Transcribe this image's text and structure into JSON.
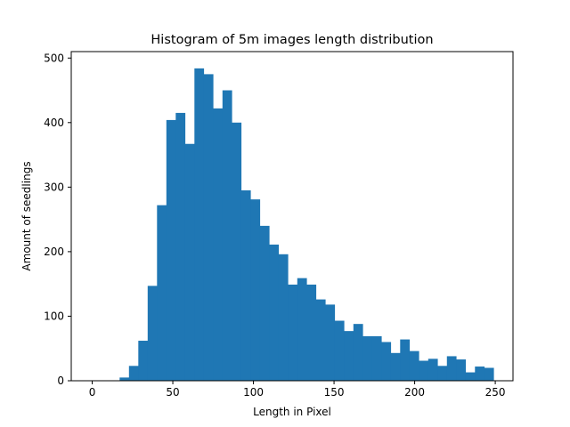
{
  "chart_data": {
    "type": "bar",
    "title": "Histogram of 5m images length distribution",
    "xlabel": "Length in Pixel",
    "ylabel": "Amount of seedlings",
    "xlim": [
      -13,
      261
    ],
    "ylim": [
      0,
      510
    ],
    "xticks": [
      0,
      50,
      100,
      150,
      200,
      250
    ],
    "yticks": [
      0,
      100,
      200,
      300,
      400,
      500
    ],
    "bar_color": "#1f77b4",
    "grid": false,
    "bin_width": 5.8,
    "bins": [
      {
        "x0": 17.0,
        "value": 5
      },
      {
        "x0": 22.8,
        "value": 23
      },
      {
        "x0": 28.6,
        "value": 62
      },
      {
        "x0": 34.4,
        "value": 147
      },
      {
        "x0": 40.2,
        "value": 272
      },
      {
        "x0": 46.0,
        "value": 404
      },
      {
        "x0": 51.8,
        "value": 415
      },
      {
        "x0": 57.6,
        "value": 367
      },
      {
        "x0": 63.4,
        "value": 484
      },
      {
        "x0": 69.2,
        "value": 475
      },
      {
        "x0": 75.0,
        "value": 422
      },
      {
        "x0": 80.8,
        "value": 450
      },
      {
        "x0": 86.6,
        "value": 400
      },
      {
        "x0": 92.4,
        "value": 295
      },
      {
        "x0": 98.2,
        "value": 281
      },
      {
        "x0": 104.0,
        "value": 240
      },
      {
        "x0": 109.8,
        "value": 211
      },
      {
        "x0": 115.6,
        "value": 196
      },
      {
        "x0": 121.4,
        "value": 149
      },
      {
        "x0": 127.2,
        "value": 159
      },
      {
        "x0": 133.0,
        "value": 149
      },
      {
        "x0": 138.8,
        "value": 126
      },
      {
        "x0": 144.6,
        "value": 118
      },
      {
        "x0": 150.4,
        "value": 93
      },
      {
        "x0": 156.2,
        "value": 77
      },
      {
        "x0": 162.0,
        "value": 88
      },
      {
        "x0": 167.8,
        "value": 69
      },
      {
        "x0": 173.6,
        "value": 69
      },
      {
        "x0": 179.4,
        "value": 60
      },
      {
        "x0": 185.2,
        "value": 43
      },
      {
        "x0": 191.0,
        "value": 64
      },
      {
        "x0": 196.8,
        "value": 46
      },
      {
        "x0": 202.6,
        "value": 31
      },
      {
        "x0": 208.4,
        "value": 34
      },
      {
        "x0": 214.2,
        "value": 23
      },
      {
        "x0": 220.0,
        "value": 38
      },
      {
        "x0": 225.8,
        "value": 33
      },
      {
        "x0": 231.6,
        "value": 13
      },
      {
        "x0": 237.4,
        "value": 22
      },
      {
        "x0": 243.2,
        "value": 20
      }
    ]
  }
}
